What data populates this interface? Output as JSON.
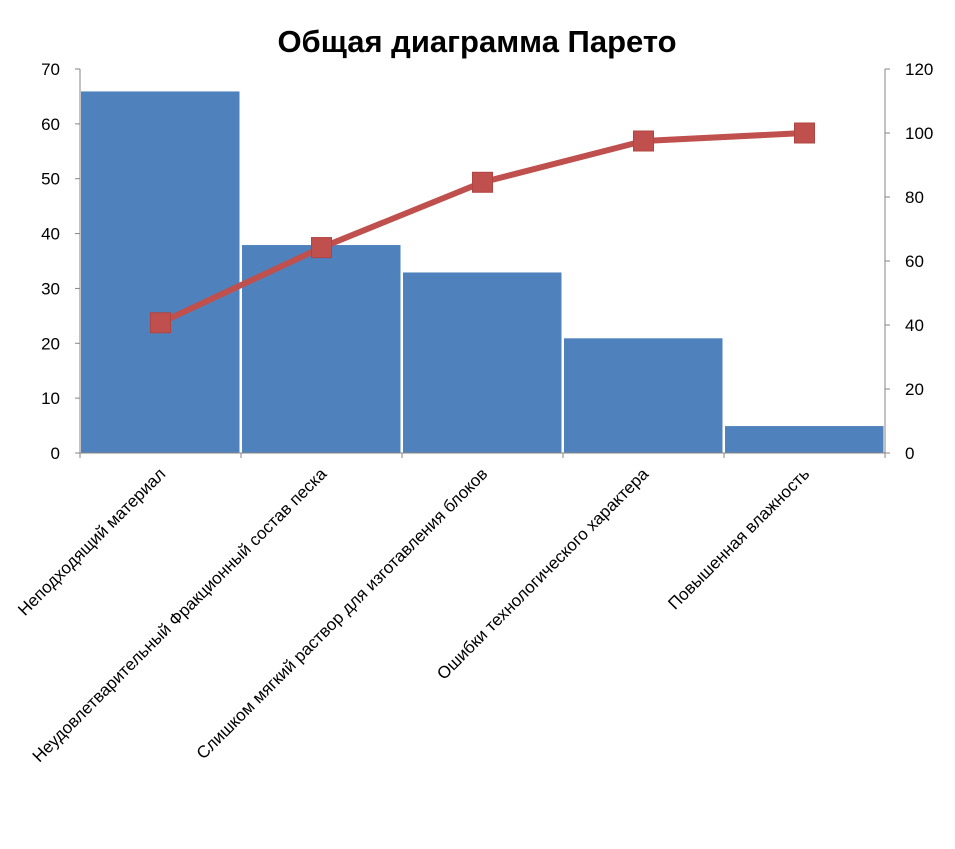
{
  "chart_data": {
    "type": "bar",
    "title": "Общая диаграмма Парето",
    "categories": [
      "Неподходящий материал",
      "Неудовлетварительный Фракционный состав песка",
      "Слишком мягкий раствор для изготавления блоков",
      "Ошибки технологического характера",
      "Повышенная влажность"
    ],
    "series": [
      {
        "type": "bar",
        "axis": "left",
        "values": [
          66,
          38,
          33,
          21,
          5
        ]
      },
      {
        "type": "line",
        "axis": "right",
        "values": [
          40.7,
          64.2,
          84.6,
          97.5,
          100
        ]
      }
    ],
    "ylim": [
      0,
      70
    ],
    "y2lim": [
      0,
      120
    ],
    "yticks": [
      0,
      10,
      20,
      30,
      40,
      50,
      60,
      70
    ],
    "y2ticks": [
      0,
      20,
      40,
      60,
      80,
      100,
      120
    ],
    "xlabel": "",
    "ylabel": "",
    "grid": false,
    "legend": "none",
    "colors": {
      "bar": "#4F81BD",
      "line": "#C0504D"
    }
  }
}
